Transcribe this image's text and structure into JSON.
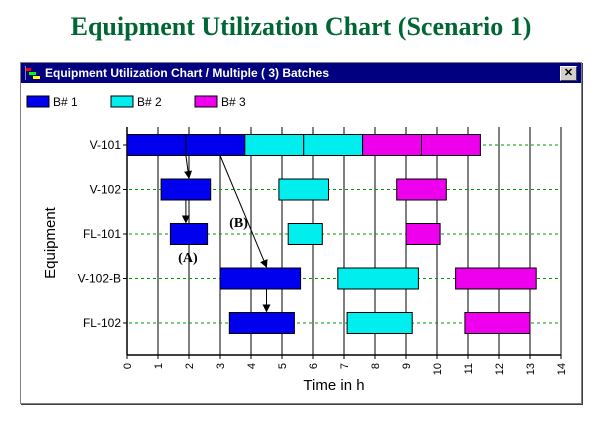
{
  "page_title": "Equipment Utilization Chart (Scenario 1)",
  "window": {
    "title": "Equipment Utilization Chart / Multiple ( 3) Batches",
    "close_label": "✕",
    "close_icon": "close-icon",
    "app_icon": "chart-window-icon"
  },
  "colors": {
    "B#1": "#0000ee",
    "B#2": "#00eeee",
    "B#3": "#ee00ee",
    "title": "#006633",
    "titlebar": "#000080",
    "grid_row": "#009900",
    "grid_col": "#000000"
  },
  "chart_data": {
    "type": "gantt",
    "xlabel": "Time in h",
    "ylabel": "Equipment",
    "xlim": [
      0,
      14
    ],
    "xticks": [
      0,
      1,
      2,
      3,
      4,
      5,
      6,
      7,
      8,
      9,
      10,
      11,
      12,
      13,
      14
    ],
    "grid": {
      "vertical": true,
      "horizontal": "dashed"
    },
    "legend_position": "top-left",
    "categories": [
      "V-101",
      "V-102",
      "FL-101",
      "V-102-B",
      "FL-102"
    ],
    "series": [
      {
        "name": "B# 1",
        "key": "B#1",
        "bars": [
          {
            "equipment": "V-101",
            "start": 0.0,
            "end": 1.9
          },
          {
            "equipment": "V-101",
            "start": 1.9,
            "end": 3.8
          },
          {
            "equipment": "V-102",
            "start": 1.1,
            "end": 2.7
          },
          {
            "equipment": "FL-101",
            "start": 1.4,
            "end": 2.6
          },
          {
            "equipment": "V-102-B",
            "start": 3.0,
            "end": 5.6
          },
          {
            "equipment": "FL-102",
            "start": 3.3,
            "end": 5.4
          }
        ]
      },
      {
        "name": "B# 2",
        "key": "B#2",
        "bars": [
          {
            "equipment": "V-101",
            "start": 3.8,
            "end": 5.7
          },
          {
            "equipment": "V-101",
            "start": 5.7,
            "end": 7.6
          },
          {
            "equipment": "V-102",
            "start": 4.9,
            "end": 6.5
          },
          {
            "equipment": "FL-101",
            "start": 5.2,
            "end": 6.3
          },
          {
            "equipment": "V-102-B",
            "start": 6.8,
            "end": 9.4
          },
          {
            "equipment": "FL-102",
            "start": 7.1,
            "end": 9.2
          }
        ]
      },
      {
        "name": "B# 3",
        "key": "B#3",
        "bars": [
          {
            "equipment": "V-101",
            "start": 7.6,
            "end": 9.5
          },
          {
            "equipment": "V-101",
            "start": 9.5,
            "end": 11.4
          },
          {
            "equipment": "V-102",
            "start": 8.7,
            "end": 10.3
          },
          {
            "equipment": "FL-101",
            "start": 9.0,
            "end": 10.1
          },
          {
            "equipment": "V-102-B",
            "start": 10.6,
            "end": 13.2
          },
          {
            "equipment": "FL-102",
            "start": 10.9,
            "end": 13.0
          }
        ]
      }
    ],
    "annotations": [
      {
        "label": "(A)",
        "arrows": [
          {
            "from": {
              "x": 1.9,
              "equipment": "V-101"
            },
            "to": {
              "x": 2.0,
              "equipment": "V-102"
            }
          },
          {
            "from": {
              "x": 1.9,
              "equipment": "V-102"
            },
            "to": {
              "x": 1.9,
              "equipment": "FL-101"
            }
          }
        ]
      },
      {
        "label": "(B)",
        "arrows": [
          {
            "from": {
              "x": 3.0,
              "equipment": "V-101"
            },
            "to": {
              "x": 4.5,
              "equipment": "V-102-B"
            }
          },
          {
            "from": {
              "x": 4.5,
              "equipment": "V-102-B"
            },
            "to": {
              "x": 4.5,
              "equipment": "FL-102"
            }
          }
        ]
      }
    ]
  }
}
